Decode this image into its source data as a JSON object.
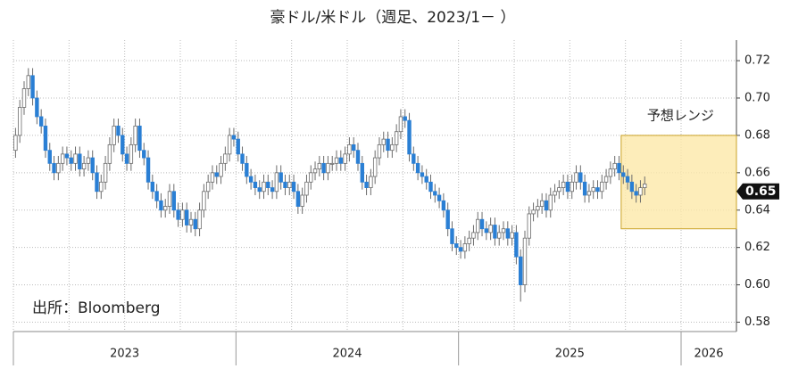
{
  "chart_data": {
    "type": "candlestick",
    "title": "豪ドル/米ドル（週足、2023/1－ ）",
    "source": "出所：Bloomberg",
    "up_color": "#ffffff",
    "down_color": "#2a7fd4",
    "outline_color": "#6b6b6b",
    "open": [
      0.672,
      0.68,
      0.695,
      0.705,
      0.712,
      0.7,
      0.69,
      0.685,
      0.672,
      0.665,
      0.66,
      0.665,
      0.67,
      0.668,
      0.665,
      0.67,
      0.662,
      0.665,
      0.668,
      0.66,
      0.65,
      0.655,
      0.665,
      0.675,
      0.685,
      0.68,
      0.67,
      0.665,
      0.675,
      0.685,
      0.672,
      0.668,
      0.655,
      0.65,
      0.645,
      0.64,
      0.642,
      0.65,
      0.64,
      0.635,
      0.64,
      0.632,
      0.635,
      0.63,
      0.64,
      0.65,
      0.655,
      0.66,
      0.658,
      0.665,
      0.67,
      0.68,
      0.678,
      0.67,
      0.665,
      0.658,
      0.655,
      0.652,
      0.65,
      0.655,
      0.652,
      0.65,
      0.66,
      0.655,
      0.652,
      0.655,
      0.65,
      0.642,
      0.648,
      0.655,
      0.66,
      0.662,
      0.665,
      0.66,
      0.665,
      0.665,
      0.668,
      0.665,
      0.67,
      0.675,
      0.672,
      0.665,
      0.655,
      0.652,
      0.658,
      0.668,
      0.675,
      0.678,
      0.672,
      0.675,
      0.682,
      0.69,
      0.688,
      0.67,
      0.665,
      0.66,
      0.658,
      0.655,
      0.65,
      0.648,
      0.645,
      0.64,
      0.63,
      0.622,
      0.62,
      0.618,
      0.622,
      0.625,
      0.628,
      0.635,
      0.63,
      0.628,
      0.632,
      0.625,
      0.628,
      0.63,
      0.625,
      0.628,
      0.615,
      0.6,
      0.625,
      0.638,
      0.64,
      0.642,
      0.645,
      0.64,
      0.648,
      0.65,
      0.652,
      0.655,
      0.65,
      0.655,
      0.66,
      0.655,
      0.648,
      0.65,
      0.652,
      0.65,
      0.655,
      0.658,
      0.662,
      0.665,
      0.66,
      0.658,
      0.655,
      0.65,
      0.648,
      0.652
    ],
    "high": [
      0.684,
      0.699,
      0.709,
      0.716,
      0.716,
      0.704,
      0.694,
      0.689,
      0.676,
      0.669,
      0.669,
      0.674,
      0.674,
      0.672,
      0.674,
      0.674,
      0.669,
      0.672,
      0.672,
      0.664,
      0.659,
      0.669,
      0.679,
      0.689,
      0.689,
      0.684,
      0.674,
      0.679,
      0.689,
      0.689,
      0.676,
      0.672,
      0.659,
      0.654,
      0.649,
      0.646,
      0.654,
      0.654,
      0.644,
      0.644,
      0.644,
      0.639,
      0.639,
      0.644,
      0.654,
      0.659,
      0.664,
      0.664,
      0.669,
      0.674,
      0.684,
      0.684,
      0.682,
      0.674,
      0.669,
      0.662,
      0.659,
      0.656,
      0.659,
      0.659,
      0.656,
      0.664,
      0.664,
      0.659,
      0.659,
      0.659,
      0.654,
      0.652,
      0.659,
      0.664,
      0.666,
      0.669,
      0.669,
      0.669,
      0.669,
      0.672,
      0.672,
      0.674,
      0.679,
      0.679,
      0.676,
      0.669,
      0.659,
      0.662,
      0.672,
      0.679,
      0.682,
      0.682,
      0.679,
      0.686,
      0.694,
      0.694,
      0.692,
      0.674,
      0.669,
      0.664,
      0.662,
      0.659,
      0.654,
      0.652,
      0.649,
      0.644,
      0.634,
      0.626,
      0.624,
      0.626,
      0.629,
      0.632,
      0.639,
      0.639,
      0.634,
      0.636,
      0.636,
      0.632,
      0.634,
      0.634,
      0.632,
      0.632,
      0.619,
      0.629,
      0.642,
      0.644,
      0.646,
      0.649,
      0.649,
      0.652,
      0.654,
      0.656,
      0.659,
      0.659,
      0.659,
      0.664,
      0.664,
      0.659,
      0.654,
      0.656,
      0.656,
      0.659,
      0.662,
      0.666,
      0.669,
      0.669,
      0.664,
      0.662,
      0.659,
      0.654,
      0.656,
      0.658
    ],
    "low": [
      0.668,
      0.676,
      0.691,
      0.701,
      0.696,
      0.686,
      0.681,
      0.668,
      0.661,
      0.656,
      0.656,
      0.661,
      0.664,
      0.661,
      0.661,
      0.658,
      0.658,
      0.661,
      0.656,
      0.646,
      0.646,
      0.651,
      0.661,
      0.671,
      0.676,
      0.666,
      0.661,
      0.661,
      0.671,
      0.668,
      0.664,
      0.651,
      0.646,
      0.641,
      0.636,
      0.636,
      0.638,
      0.636,
      0.631,
      0.631,
      0.628,
      0.628,
      0.626,
      0.626,
      0.636,
      0.646,
      0.651,
      0.654,
      0.654,
      0.661,
      0.666,
      0.674,
      0.666,
      0.661,
      0.654,
      0.651,
      0.648,
      0.646,
      0.646,
      0.648,
      0.646,
      0.646,
      0.651,
      0.648,
      0.648,
      0.646,
      0.638,
      0.638,
      0.644,
      0.651,
      0.656,
      0.658,
      0.656,
      0.656,
      0.661,
      0.661,
      0.661,
      0.661,
      0.666,
      0.668,
      0.661,
      0.651,
      0.648,
      0.648,
      0.654,
      0.664,
      0.671,
      0.668,
      0.668,
      0.671,
      0.678,
      0.684,
      0.666,
      0.661,
      0.656,
      0.654,
      0.651,
      0.646,
      0.644,
      0.641,
      0.636,
      0.626,
      0.618,
      0.616,
      0.614,
      0.614,
      0.618,
      0.621,
      0.624,
      0.626,
      0.624,
      0.624,
      0.621,
      0.621,
      0.624,
      0.621,
      0.621,
      0.611,
      0.591,
      0.596,
      0.621,
      0.634,
      0.636,
      0.638,
      0.636,
      0.636,
      0.644,
      0.646,
      0.648,
      0.646,
      0.646,
      0.651,
      0.651,
      0.644,
      0.644,
      0.646,
      0.646,
      0.646,
      0.651,
      0.654,
      0.658,
      0.656,
      0.654,
      0.651,
      0.646,
      0.644,
      0.644,
      0.648
    ],
    "close": [
      0.68,
      0.695,
      0.705,
      0.712,
      0.7,
      0.69,
      0.685,
      0.672,
      0.665,
      0.66,
      0.665,
      0.67,
      0.668,
      0.665,
      0.67,
      0.662,
      0.665,
      0.668,
      0.66,
      0.65,
      0.655,
      0.665,
      0.675,
      0.685,
      0.68,
      0.67,
      0.665,
      0.675,
      0.685,
      0.672,
      0.668,
      0.655,
      0.65,
      0.645,
      0.64,
      0.642,
      0.65,
      0.64,
      0.635,
      0.64,
      0.632,
      0.635,
      0.63,
      0.64,
      0.65,
      0.655,
      0.66,
      0.658,
      0.665,
      0.67,
      0.68,
      0.678,
      0.67,
      0.665,
      0.658,
      0.655,
      0.652,
      0.65,
      0.655,
      0.652,
      0.65,
      0.66,
      0.655,
      0.652,
      0.655,
      0.65,
      0.642,
      0.648,
      0.655,
      0.66,
      0.662,
      0.665,
      0.66,
      0.665,
      0.665,
      0.668,
      0.665,
      0.67,
      0.675,
      0.672,
      0.665,
      0.655,
      0.652,
      0.658,
      0.668,
      0.675,
      0.678,
      0.672,
      0.675,
      0.682,
      0.69,
      0.688,
      0.67,
      0.665,
      0.66,
      0.658,
      0.655,
      0.65,
      0.648,
      0.645,
      0.64,
      0.63,
      0.622,
      0.62,
      0.618,
      0.622,
      0.625,
      0.628,
      0.635,
      0.63,
      0.628,
      0.632,
      0.625,
      0.628,
      0.63,
      0.625,
      0.628,
      0.615,
      0.6,
      0.625,
      0.638,
      0.64,
      0.642,
      0.645,
      0.64,
      0.648,
      0.65,
      0.652,
      0.655,
      0.65,
      0.655,
      0.66,
      0.655,
      0.648,
      0.65,
      0.652,
      0.65,
      0.655,
      0.658,
      0.662,
      0.665,
      0.66,
      0.658,
      0.655,
      0.65,
      0.648,
      0.652,
      0.654
    ],
    "ylim": [
      0.575,
      0.731
    ],
    "yticks": [
      0.58,
      {
        "value": 0.6,
        "label": "0.60"
      },
      0.62,
      0.64,
      0.66,
      0.68,
      {
        "value": 0.7,
        "label": "0.70"
      },
      0.72
    ],
    "x_labels": [
      "2023",
      "2024",
      "2025",
      "2026"
    ],
    "grid": true,
    "range": {
      "label": "予想レンジ",
      "low": 0.63,
      "high": 0.68,
      "color": "#fde9a9",
      "edge_color": "#c9a227"
    },
    "current_price": 0.65
  }
}
